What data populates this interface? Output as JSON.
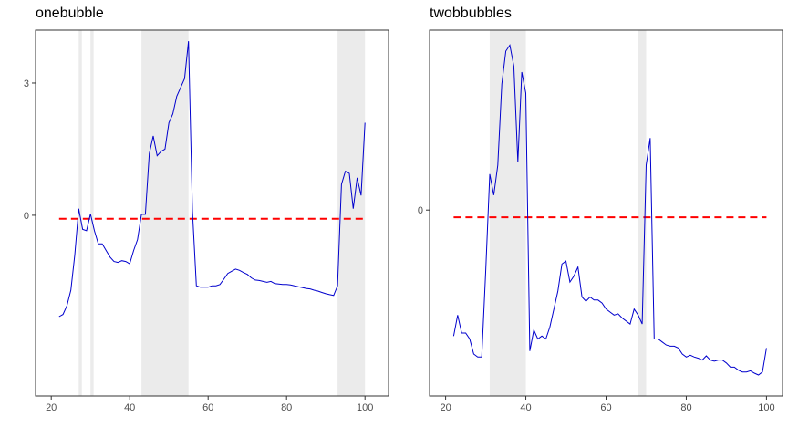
{
  "chart_data": [
    {
      "type": "line",
      "title": "onebubble",
      "xlabel": "",
      "ylabel": "",
      "xlim": [
        16,
        106
      ],
      "ylim": [
        -4.1,
        4.2
      ],
      "xticks": [
        20,
        40,
        60,
        80,
        100
      ],
      "xtick_labels": [
        "20",
        "40",
        "60",
        "80",
        "100"
      ],
      "yticks": [
        0,
        3
      ],
      "ytick_labels": [
        "0",
        "3"
      ],
      "grid": false,
      "line_color": "#0000CD",
      "reference_line": {
        "value": -0.08,
        "color": "#FF0000",
        "style": "dashed"
      },
      "shaded_intervals": [
        [
          27,
          27.8
        ],
        [
          30,
          30.8
        ],
        [
          43,
          55
        ],
        [
          93,
          100
        ]
      ],
      "shade_color": "#EBEBEB",
      "series": [
        {
          "x": [
            22,
            23,
            24,
            25,
            26,
            27,
            28,
            29,
            30,
            31,
            32,
            33,
            34,
            35,
            36,
            37,
            38,
            39,
            40,
            41,
            42,
            43,
            44,
            45,
            46,
            47,
            48,
            49,
            50,
            51,
            52,
            53,
            54,
            55,
            56,
            57,
            58,
            59,
            60,
            61,
            62,
            63,
            64,
            65,
            66,
            67,
            68,
            69,
            70,
            71,
            72,
            73,
            74,
            75,
            76,
            77,
            78,
            79,
            80,
            81,
            82,
            83,
            84,
            85,
            86,
            87,
            88,
            89,
            90,
            91,
            92,
            93,
            94,
            95,
            96,
            97,
            98,
            99,
            100
          ],
          "values": [
            -2.3,
            -2.25,
            -2.05,
            -1.7,
            -0.9,
            0.15,
            -0.32,
            -0.35,
            0.03,
            -0.35,
            -0.65,
            -0.65,
            -0.8,
            -0.95,
            -1.05,
            -1.07,
            -1.03,
            -1.05,
            -1.1,
            -0.8,
            -0.55,
            0.02,
            0.02,
            1.4,
            1.8,
            1.35,
            1.45,
            1.5,
            2.1,
            2.3,
            2.7,
            2.9,
            3.1,
            3.95,
            0.1,
            -1.6,
            -1.63,
            -1.63,
            -1.63,
            -1.6,
            -1.6,
            -1.57,
            -1.45,
            -1.32,
            -1.27,
            -1.22,
            -1.25,
            -1.3,
            -1.34,
            -1.42,
            -1.47,
            -1.48,
            -1.5,
            -1.52,
            -1.5,
            -1.55,
            -1.56,
            -1.57,
            -1.57,
            -1.58,
            -1.6,
            -1.62,
            -1.64,
            -1.66,
            -1.67,
            -1.7,
            -1.72,
            -1.75,
            -1.78,
            -1.8,
            -1.82,
            -1.6,
            0.7,
            1.0,
            0.95,
            0.15,
            0.85,
            0.45,
            2.1
          ]
        }
      ]
    },
    {
      "type": "line",
      "title": "twobbubbles",
      "xlabel": "",
      "ylabel": "",
      "xlim": [
        16,
        104
      ],
      "ylim": [
        -3.1,
        3.0
      ],
      "xticks": [
        20,
        40,
        60,
        80,
        100
      ],
      "xtick_labels": [
        "20",
        "40",
        "60",
        "80",
        "100"
      ],
      "yticks": [
        0
      ],
      "ytick_labels": [
        "0"
      ],
      "grid": false,
      "line_color": "#0000CD",
      "reference_line": {
        "value": -0.12,
        "color": "#FF0000",
        "style": "dashed"
      },
      "shaded_intervals": [
        [
          31,
          40
        ],
        [
          68,
          70
        ]
      ],
      "shade_color": "#EBEBEB",
      "series": [
        {
          "x": [
            22,
            23,
            24,
            25,
            26,
            27,
            28,
            29,
            30,
            31,
            32,
            33,
            34,
            35,
            36,
            37,
            38,
            39,
            40,
            41,
            42,
            43,
            44,
            45,
            46,
            47,
            48,
            49,
            50,
            51,
            52,
            53,
            54,
            55,
            56,
            57,
            58,
            59,
            60,
            61,
            62,
            63,
            64,
            65,
            66,
            67,
            68,
            69,
            70,
            71,
            72,
            73,
            74,
            75,
            76,
            77,
            78,
            79,
            80,
            81,
            82,
            83,
            84,
            85,
            86,
            87,
            88,
            89,
            90,
            91,
            92,
            93,
            94,
            95,
            96,
            97,
            98,
            99,
            100
          ],
          "values": [
            -2.1,
            -1.75,
            -2.05,
            -2.05,
            -2.15,
            -2.4,
            -2.45,
            -2.45,
            -1.0,
            0.6,
            0.25,
            0.75,
            2.1,
            2.65,
            2.75,
            2.4,
            0.8,
            2.3,
            1.95,
            -2.35,
            -2.0,
            -2.15,
            -2.1,
            -2.15,
            -1.95,
            -1.65,
            -1.35,
            -0.9,
            -0.85,
            -1.2,
            -1.1,
            -0.95,
            -1.45,
            -1.52,
            -1.45,
            -1.5,
            -1.5,
            -1.55,
            -1.65,
            -1.7,
            -1.75,
            -1.73,
            -1.8,
            -1.85,
            -1.9,
            -1.65,
            -1.75,
            -1.9,
            0.75,
            1.2,
            -2.15,
            -2.15,
            -2.2,
            -2.25,
            -2.27,
            -2.27,
            -2.3,
            -2.4,
            -2.45,
            -2.42,
            -2.45,
            -2.47,
            -2.5,
            -2.43,
            -2.5,
            -2.52,
            -2.5,
            -2.5,
            -2.55,
            -2.62,
            -2.62,
            -2.67,
            -2.7,
            -2.7,
            -2.68,
            -2.72,
            -2.75,
            -2.7,
            -2.3
          ]
        }
      ]
    }
  ]
}
